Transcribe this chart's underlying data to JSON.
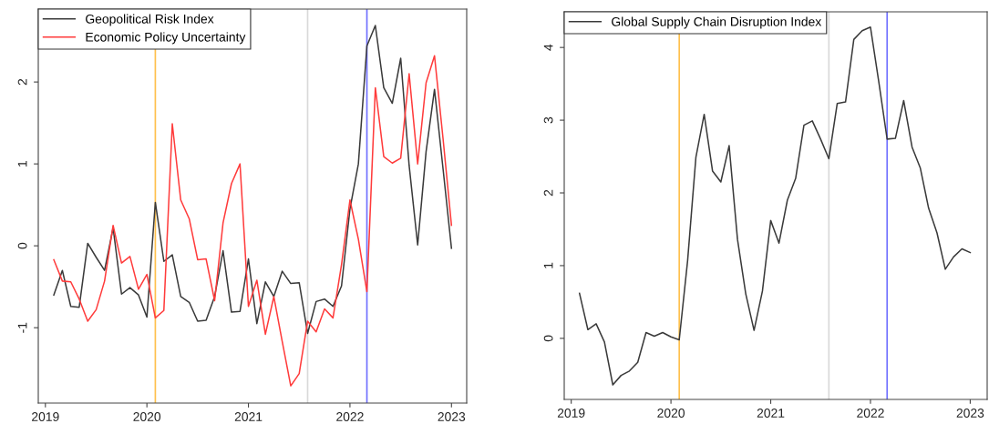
{
  "chart_data": [
    {
      "type": "line",
      "x": [
        2019.083,
        2019.167,
        2019.25,
        2019.333,
        2019.417,
        2019.5,
        2019.583,
        2019.667,
        2019.75,
        2019.833,
        2019.917,
        2020.0,
        2020.083,
        2020.167,
        2020.25,
        2020.333,
        2020.417,
        2020.5,
        2020.583,
        2020.667,
        2020.75,
        2020.833,
        2020.917,
        2021.0,
        2021.083,
        2021.167,
        2021.25,
        2021.333,
        2021.417,
        2021.5,
        2021.583,
        2021.667,
        2021.75,
        2021.833,
        2021.917,
        2022.0,
        2022.083,
        2022.167,
        2022.25,
        2022.333,
        2022.417,
        2022.5,
        2022.583,
        2022.667,
        2022.75,
        2022.833,
        2022.917,
        2023.0
      ],
      "series": [
        {
          "name": "Geopolitical Risk Index",
          "color": "#3a3a3a",
          "values": [
            -0.6,
            -0.3,
            -0.74,
            -0.75,
            0.03,
            -0.14,
            -0.3,
            0.22,
            -0.59,
            -0.51,
            -0.6,
            -0.87,
            0.53,
            -0.19,
            -0.11,
            -0.62,
            -0.69,
            -0.92,
            -0.91,
            -0.62,
            -0.06,
            -0.81,
            -0.8,
            -0.16,
            -0.95,
            -0.44,
            -0.62,
            -0.31,
            -0.46,
            -0.45,
            -1.07,
            -0.68,
            -0.65,
            -0.74,
            -0.49,
            0.45,
            1.0,
            2.44,
            2.69,
            1.93,
            1.74,
            2.29,
            0.98,
            0.01,
            1.15,
            1.91,
            0.94,
            -0.03
          ]
        },
        {
          "name": "Economic Policy Uncertainty",
          "color": "#ff3b3b",
          "values": [
            -0.17,
            -0.43,
            -0.44,
            -0.65,
            -0.92,
            -0.78,
            -0.43,
            0.25,
            -0.21,
            -0.13,
            -0.53,
            -0.35,
            -0.88,
            -0.79,
            1.49,
            0.56,
            0.33,
            -0.17,
            -0.16,
            -0.67,
            0.28,
            0.76,
            1.0,
            -0.74,
            -0.42,
            -1.08,
            -0.62,
            -1.17,
            -1.71,
            -1.56,
            -0.92,
            -1.05,
            -0.77,
            -0.88,
            -0.23,
            0.56,
            0.08,
            -0.56,
            1.93,
            1.09,
            1.01,
            1.07,
            2.1,
            1.0,
            1.99,
            2.32,
            1.31,
            0.25
          ]
        }
      ],
      "xlim": [
        2018.93,
        2023.15
      ],
      "xticks": [
        2019,
        2020,
        2021,
        2022,
        2023
      ],
      "ylim": [
        -1.92,
        2.89
      ],
      "yticks": [
        -1,
        0,
        1,
        2
      ],
      "ref_lines": [
        {
          "axis": "x",
          "value": 2020.083,
          "color": "#ffc04d"
        },
        {
          "axis": "x",
          "value": 2021.583,
          "color": "#d9d9d9"
        },
        {
          "axis": "x",
          "value": 2022.167,
          "color": "#7070ff"
        }
      ],
      "legend": "top left",
      "grid": false
    },
    {
      "type": "line",
      "x": [
        2019.083,
        2019.167,
        2019.25,
        2019.333,
        2019.417,
        2019.5,
        2019.583,
        2019.667,
        2019.75,
        2019.833,
        2019.917,
        2020.0,
        2020.083,
        2020.167,
        2020.25,
        2020.333,
        2020.417,
        2020.5,
        2020.583,
        2020.667,
        2020.75,
        2020.833,
        2020.917,
        2021.0,
        2021.083,
        2021.167,
        2021.25,
        2021.333,
        2021.417,
        2021.5,
        2021.583,
        2021.667,
        2021.75,
        2021.833,
        2021.917,
        2022.0,
        2022.083,
        2022.167,
        2022.25,
        2022.333,
        2022.417,
        2022.5,
        2022.583,
        2022.667,
        2022.75,
        2022.833,
        2022.917,
        2023.0
      ],
      "series": [
        {
          "name": "Global Supply Chain Disruption Index",
          "color": "#3a3a3a",
          "values": [
            0.62,
            0.12,
            0.2,
            -0.05,
            -0.64,
            -0.51,
            -0.45,
            -0.33,
            0.08,
            0.03,
            0.08,
            0.02,
            -0.02,
            1.07,
            2.49,
            3.08,
            2.3,
            2.15,
            2.65,
            1.36,
            0.61,
            0.11,
            0.65,
            1.62,
            1.31,
            1.9,
            2.2,
            2.93,
            2.99,
            2.74,
            2.47,
            3.23,
            3.25,
            4.11,
            4.23,
            4.28,
            3.53,
            2.74,
            2.75,
            3.27,
            2.63,
            2.34,
            1.79,
            1.45,
            0.95,
            1.12,
            1.23,
            1.18
          ]
        }
      ],
      "xlim": [
        2018.93,
        2023.17
      ],
      "xticks": [
        2019,
        2020,
        2021,
        2022,
        2023
      ],
      "ylim": [
        -0.84,
        4.49
      ],
      "yticks": [
        0,
        1,
        2,
        3,
        4
      ],
      "ref_lines": [
        {
          "axis": "x",
          "value": 2020.083,
          "color": "#ffc04d"
        },
        {
          "axis": "x",
          "value": 2021.583,
          "color": "#d9d9d9"
        },
        {
          "axis": "x",
          "value": 2022.167,
          "color": "#7070ff"
        }
      ],
      "legend": "top left",
      "grid": false
    }
  ]
}
